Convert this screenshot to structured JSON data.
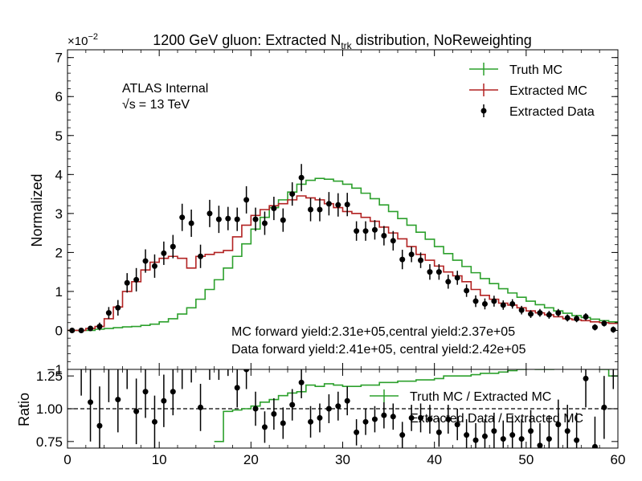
{
  "chart_data": [
    {
      "type": "line",
      "title": "1200 GeV gluon: Extracted N",
      "title_sub": "trk",
      "title_suffix": " distribution, NoReweighting",
      "ylabel": "Normalized",
      "exponent_label": "×10",
      "exponent_power": "−2",
      "ylim": [
        -0.01,
        0.072
      ],
      "xlim": [
        0,
        60
      ],
      "y_ticks": [
        -0.01,
        0.0,
        0.01,
        0.02,
        0.03,
        0.04,
        0.05,
        0.06,
        0.07
      ],
      "y_tick_labels": [
        "−1",
        "0",
        "1",
        "2",
        "3",
        "4",
        "5",
        "6",
        "7"
      ],
      "annotations": {
        "atlas": "ATLAS Internal",
        "energy_sqrt": "√s",
        "energy_value": "= 13 TeV",
        "mc_yield": "MC forward yield:2.31e+05,central yield:2.37e+05",
        "data_yield": "Data forward yield:2.41e+05, central yield:2.42e+05"
      },
      "legend_position": "top-right",
      "series": [
        {
          "name": "Truth MC",
          "color": "#2ca02c",
          "style": "step",
          "x": [
            0,
            1,
            2,
            3,
            4,
            5,
            6,
            7,
            8,
            9,
            10,
            11,
            12,
            13,
            14,
            15,
            16,
            17,
            18,
            19,
            20,
            21,
            22,
            23,
            24,
            25,
            26,
            27,
            28,
            29,
            30,
            31,
            32,
            33,
            34,
            35,
            36,
            37,
            38,
            39,
            40,
            41,
            42,
            43,
            44,
            45,
            46,
            47,
            48,
            49,
            50,
            51,
            52,
            53,
            54,
            55,
            56,
            57,
            58,
            59
          ],
          "values": [
            0.0,
            0.0,
            0.0,
            0.0003,
            0.0005,
            0.0007,
            0.0009,
            0.001,
            0.0013,
            0.0016,
            0.0022,
            0.003,
            0.0042,
            0.0058,
            0.008,
            0.0105,
            0.013,
            0.016,
            0.019,
            0.0222,
            0.026,
            0.029,
            0.0315,
            0.0335,
            0.0355,
            0.0375,
            0.0385,
            0.039,
            0.0388,
            0.0383,
            0.0375,
            0.0365,
            0.0352,
            0.0338,
            0.0322,
            0.0305,
            0.0287,
            0.027,
            0.0252,
            0.0234,
            0.0215,
            0.0197,
            0.018,
            0.0164,
            0.0148,
            0.0133,
            0.012,
            0.0107,
            0.0096,
            0.0085,
            0.0075,
            0.0066,
            0.0058,
            0.005,
            0.0044,
            0.0038,
            0.0033,
            0.0029,
            0.0025,
            0.0022
          ]
        },
        {
          "name": "Extracted MC",
          "color": "#b22222",
          "style": "step",
          "x": [
            0,
            1,
            2,
            3,
            4,
            5,
            6,
            7,
            8,
            9,
            10,
            11,
            12,
            13,
            14,
            15,
            16,
            17,
            18,
            19,
            20,
            21,
            22,
            23,
            24,
            25,
            26,
            27,
            28,
            29,
            30,
            31,
            32,
            33,
            34,
            35,
            36,
            37,
            38,
            39,
            40,
            41,
            42,
            43,
            44,
            45,
            46,
            47,
            48,
            49,
            50,
            51,
            52,
            53,
            54,
            55,
            56,
            57,
            58,
            59
          ],
          "values": [
            0.0,
            0.0,
            0.0005,
            0.001,
            0.003,
            0.006,
            0.01,
            0.0125,
            0.0155,
            0.0175,
            0.0185,
            0.019,
            0.0185,
            0.016,
            0.019,
            0.0195,
            0.02,
            0.0205,
            0.024,
            0.027,
            0.0295,
            0.031,
            0.032,
            0.0325,
            0.0335,
            0.0345,
            0.034,
            0.0335,
            0.0325,
            0.0315,
            0.0305,
            0.03,
            0.029,
            0.028,
            0.0265,
            0.025,
            0.0235,
            0.0215,
            0.0195,
            0.018,
            0.0165,
            0.015,
            0.014,
            0.0125,
            0.0105,
            0.009,
            0.008,
            0.007,
            0.0065,
            0.0058,
            0.005,
            0.0045,
            0.004,
            0.0035,
            0.003,
            0.0027,
            0.0025,
            0.0022,
            0.002,
            0.0018
          ]
        },
        {
          "name": "Extracted Data",
          "color": "#000000",
          "style": "points",
          "x": [
            0.5,
            1.5,
            2.5,
            3.5,
            4.5,
            5.5,
            6.5,
            7.5,
            8.5,
            9.5,
            10.5,
            11.5,
            12.5,
            13.5,
            14.5,
            15.5,
            16.5,
            17.5,
            18.5,
            19.5,
            20.5,
            21.5,
            22.5,
            23.5,
            24.5,
            25.5,
            26.5,
            27.5,
            28.5,
            29.5,
            30.5,
            31.5,
            32.5,
            33.5,
            34.5,
            35.5,
            36.5,
            37.5,
            38.5,
            39.5,
            40.5,
            41.5,
            42.5,
            43.5,
            44.5,
            45.5,
            46.5,
            47.5,
            48.5,
            49.5,
            50.5,
            51.5,
            52.5,
            53.5,
            54.5,
            55.5,
            56.5,
            57.5,
            58.5,
            59.5
          ],
          "values": [
            0.0,
            0.0,
            0.0005,
            0.001,
            0.0045,
            0.0058,
            0.0122,
            0.013,
            0.0178,
            0.0165,
            0.0198,
            0.0215,
            0.029,
            0.0275,
            0.019,
            0.03,
            0.0285,
            0.0287,
            0.0285,
            0.0335,
            0.0285,
            0.0275,
            0.0313,
            0.0283,
            0.035,
            0.0392,
            0.031,
            0.031,
            0.0325,
            0.0322,
            0.0323,
            0.0255,
            0.0255,
            0.0258,
            0.0243,
            0.023,
            0.0182,
            0.0195,
            0.018,
            0.015,
            0.015,
            0.0125,
            0.0135,
            0.0102,
            0.0075,
            0.0068,
            0.0075,
            0.0065,
            0.0068,
            0.0052,
            0.0042,
            0.0045,
            0.004,
            0.0045,
            0.0032,
            0.003,
            0.0035,
            0.0008,
            0.0018,
            0.0002
          ],
          "errors": [
            0.0005,
            0.0005,
            0.0006,
            0.001,
            0.0015,
            0.002,
            0.0025,
            0.003,
            0.003,
            0.003,
            0.003,
            0.003,
            0.0035,
            0.0035,
            0.003,
            0.0035,
            0.0035,
            0.003,
            0.003,
            0.0035,
            0.003,
            0.003,
            0.003,
            0.003,
            0.003,
            0.0035,
            0.003,
            0.003,
            0.003,
            0.003,
            0.003,
            0.0025,
            0.0025,
            0.0025,
            0.0025,
            0.0025,
            0.0025,
            0.002,
            0.002,
            0.002,
            0.002,
            0.0018,
            0.0018,
            0.0016,
            0.0015,
            0.0014,
            0.0014,
            0.0012,
            0.0012,
            0.0011,
            0.001,
            0.001,
            0.001,
            0.001,
            0.0009,
            0.0009,
            0.0009,
            0.0008,
            0.0008,
            0.0008
          ]
        }
      ]
    },
    {
      "type": "line",
      "ylabel": "Ratio",
      "xlabel": "",
      "ylim": [
        0.7,
        1.3
      ],
      "xlim": [
        0,
        60
      ],
      "x_ticks": [
        0,
        10,
        20,
        30,
        40,
        50,
        60
      ],
      "y_ticks": [
        0.75,
        1.0,
        1.25
      ],
      "y_tick_labels": [
        "0.75",
        "1.00",
        "1.25"
      ],
      "reference_line": 1.0,
      "legend_position": "top-right",
      "series": [
        {
          "name": "Truth MC / Extracted MC",
          "color": "#2ca02c",
          "style": "step",
          "x": [
            16,
            17,
            18,
            19,
            20,
            21,
            22,
            23,
            24,
            25,
            26,
            27,
            28,
            29,
            30,
            31,
            32,
            33,
            34,
            35,
            36,
            37,
            38,
            39,
            40,
            41,
            42,
            43,
            44,
            45,
            46,
            47,
            48,
            49,
            50,
            51,
            52,
            53,
            54,
            55,
            56,
            57,
            58,
            59
          ],
          "values": [
            0.75,
            0.98,
            0.99,
            1.0,
            1.02,
            1.05,
            1.07,
            1.1,
            1.12,
            1.13,
            1.18,
            1.17,
            1.19,
            1.18,
            1.17,
            1.17,
            1.18,
            1.18,
            1.2,
            1.2,
            1.21,
            1.21,
            1.22,
            1.22,
            1.23,
            1.25,
            1.25,
            1.25,
            1.26,
            1.27,
            1.27,
            1.28,
            1.29,
            1.3,
            1.31,
            1.3,
            1.3,
            1.31,
            1.32,
            1.32,
            1.31,
            1.32,
            1.3,
            1.25
          ]
        },
        {
          "name": "Extracted Data / Extracted MC",
          "color": "#000000",
          "style": "points",
          "x": [
            1.5,
            2.5,
            3.5,
            4.5,
            5.5,
            6.5,
            7.5,
            8.5,
            9.5,
            10.5,
            11.5,
            12.5,
            13.5,
            14.5,
            15.5,
            16.5,
            17.5,
            18.5,
            19.5,
            20.5,
            21.5,
            22.5,
            23.5,
            24.5,
            25.5,
            26.5,
            27.5,
            28.5,
            29.5,
            30.5,
            31.5,
            32.5,
            33.5,
            34.5,
            35.5,
            36.5,
            37.5,
            38.5,
            39.5,
            40.5,
            41.5,
            42.5,
            43.5,
            44.5,
            45.5,
            46.5,
            47.5,
            48.5,
            49.5,
            50.5,
            51.5,
            52.5,
            53.5,
            54.5,
            55.5,
            56.5,
            57.5,
            58.5,
            59.5
          ],
          "values": [
            1.4,
            1.05,
            0.87,
            1.35,
            1.07,
            1.4,
            0.98,
            1.13,
            0.9,
            1.06,
            1.13,
            1.35,
            1.4,
            1.01,
            1.4,
            1.4,
            1.4,
            1.16,
            1.3,
            1.0,
            0.86,
            0.96,
            0.89,
            1.03,
            1.2,
            0.9,
            0.93,
            1.0,
            1.02,
            1.06,
            0.82,
            0.9,
            0.92,
            0.95,
            0.94,
            0.8,
            0.93,
            0.93,
            0.92,
            0.82,
            0.92,
            0.88,
            0.8,
            0.76,
            0.79,
            0.83,
            0.77,
            0.8,
            0.77,
            0.83,
            0.72,
            0.77,
            0.88,
            0.83,
            0.76,
            1.23,
            0.71,
            1.01,
            1.4
          ],
          "errors": [
            0.3,
            0.3,
            0.3,
            0.3,
            0.25,
            0.25,
            0.25,
            0.2,
            0.2,
            0.2,
            0.18,
            0.2,
            0.2,
            0.18,
            0.18,
            0.18,
            0.15,
            0.15,
            0.15,
            0.13,
            0.12,
            0.12,
            0.12,
            0.12,
            0.12,
            0.12,
            0.11,
            0.11,
            0.11,
            0.11,
            0.1,
            0.1,
            0.1,
            0.1,
            0.1,
            0.1,
            0.1,
            0.11,
            0.11,
            0.11,
            0.11,
            0.12,
            0.12,
            0.13,
            0.13,
            0.14,
            0.14,
            0.15,
            0.15,
            0.16,
            0.17,
            0.18,
            0.19,
            0.2,
            0.21,
            0.22,
            0.23,
            0.24,
            0.25
          ]
        }
      ]
    }
  ]
}
